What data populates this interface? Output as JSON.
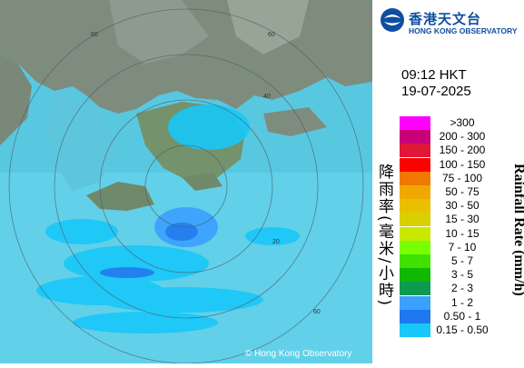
{
  "header": {
    "org_name_zh": "香港天文台",
    "org_name_en": "HONG KONG OBSERVATORY"
  },
  "timestamp": {
    "time": "09:12 HKT",
    "date": "19-07-2025"
  },
  "legend": {
    "title_zh": "降雨率(毫米/小時)",
    "title_en": "Rainfall Rate (mm/h)",
    "items": [
      {
        "label": ">300",
        "color": "#ff00ff"
      },
      {
        "label": "200 - 300",
        "color": "#c8007a"
      },
      {
        "label": "150 - 200",
        "color": "#e01838"
      },
      {
        "label": "100 - 150",
        "color": "#ff0000"
      },
      {
        "label": "75 - 100",
        "color": "#f07800"
      },
      {
        "label": "50 - 75",
        "color": "#f0a800"
      },
      {
        "label": "30 - 50",
        "color": "#e8c000"
      },
      {
        "label": "15 - 30",
        "color": "#d8d000"
      },
      {
        "label": "10 - 15",
        "color": "#c8e800"
      },
      {
        "label": "7 - 10",
        "color": "#78ff00"
      },
      {
        "label": "5 - 7",
        "color": "#40e000"
      },
      {
        "label": "3 - 5",
        "color": "#10b800"
      },
      {
        "label": "2 - 3",
        "color": "#109a50"
      },
      {
        "label": "1 - 2",
        "color": "#3ca0ff"
      },
      {
        "label": "0.50 - 1",
        "color": "#1e78f0"
      },
      {
        "label": "0.15 - 0.50",
        "color": "#18c8f8"
      }
    ]
  },
  "map": {
    "range_ring_labels": [
      "60",
      "60",
      "40",
      "20",
      "60"
    ],
    "copyright": "© Hong Kong Observatory"
  }
}
